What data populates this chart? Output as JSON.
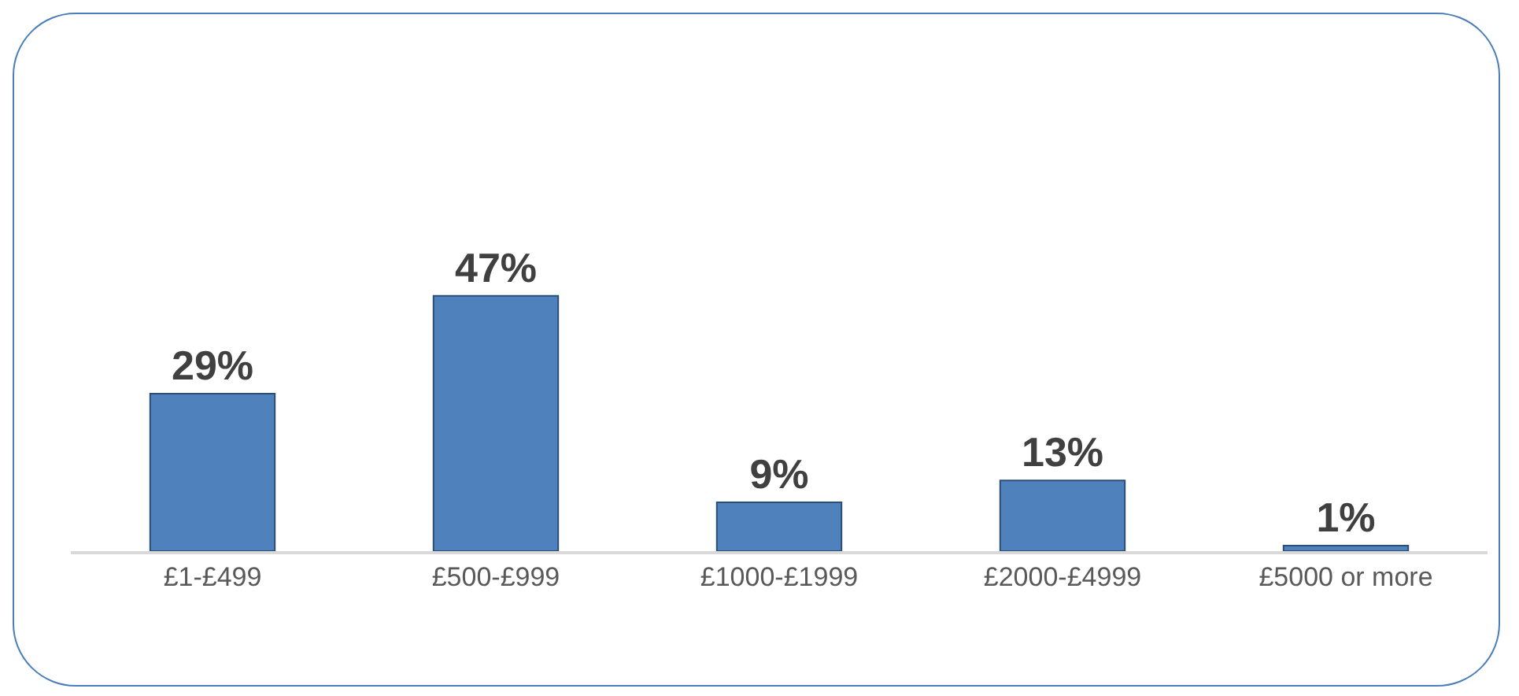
{
  "chart_data": {
    "type": "bar",
    "categories": [
      "£1-£499",
      "£500-£999",
      "£1000-£1999",
      "£2000-£4999",
      "£5000 or more"
    ],
    "values": [
      29,
      47,
      9,
      13,
      1
    ],
    "value_labels": [
      "29%",
      "47%",
      "9%",
      "13%",
      "1%"
    ],
    "color": "#4f81bd",
    "grid": false,
    "legend": false
  }
}
